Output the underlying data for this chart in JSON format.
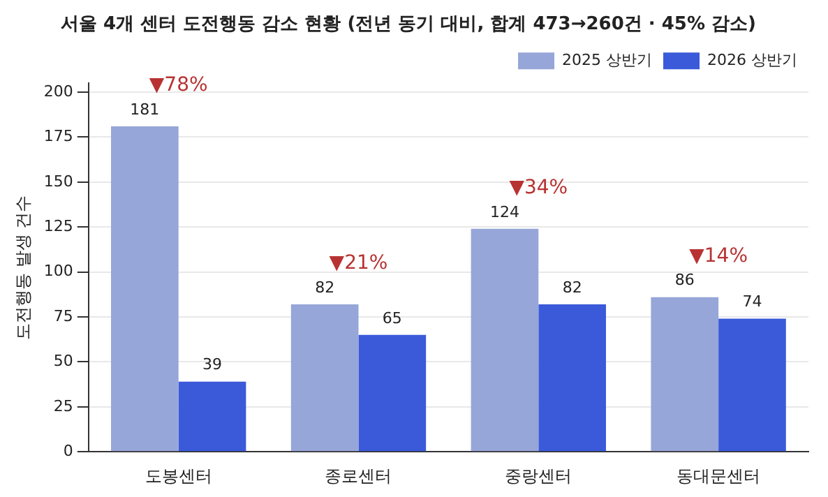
{
  "chart_data": {
    "type": "bar",
    "title": "서울 4개 센터 도전행동 감소 현황 (전년 동기 대비, 합계 473→260건 · 45% 감소)",
    "ylabel": "도전행동 발생 건수",
    "categories": [
      "도봉센터",
      "종로센터",
      "중랑센터",
      "동대문센터"
    ],
    "series": [
      {
        "name": "2025 상반기",
        "color": "#97a6d8",
        "values": [
          181,
          82,
          124,
          86
        ]
      },
      {
        "name": "2026 상반기",
        "color": "#3a5ad9",
        "values": [
          39,
          65,
          82,
          74
        ]
      }
    ],
    "ylim": [
      0,
      205
    ],
    "yticks": [
      0,
      25,
      50,
      75,
      100,
      125,
      150,
      175,
      200
    ],
    "grid": "y",
    "legend": "top right",
    "data_labels": true,
    "annotations": [
      "▼78%",
      "▼21%",
      "▼34%",
      "▼14%"
    ]
  }
}
